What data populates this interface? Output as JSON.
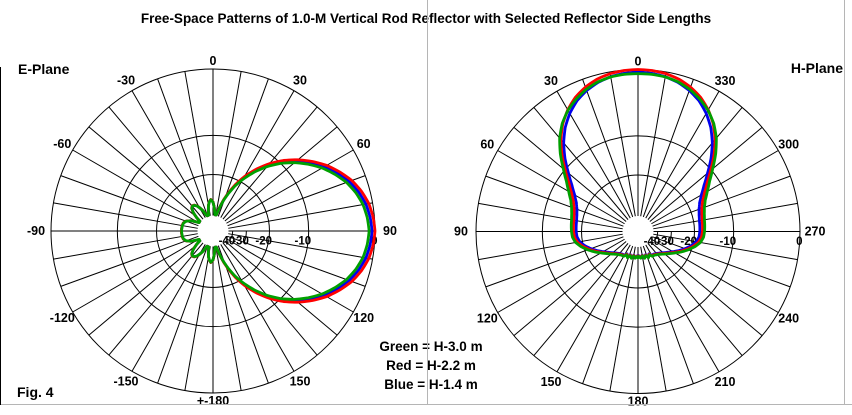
{
  "title": "Free-Space Patterns of 1.0-M Vertical Rod Reflector with Selected Reflector Side Lengths",
  "figure_label": "Fig. 4",
  "legend": {
    "lines": [
      "Green = H-3.0 m",
      "Red = H-2.2 m",
      "Blue = H-1.4 m"
    ]
  },
  "colors": {
    "green": "#00A000",
    "red": "#FF0000",
    "blue": "#0000EE",
    "grid": "#000000",
    "divider": "#B5B5B5",
    "edge": "#000000"
  },
  "chart_data": {
    "type": "polar-pattern",
    "scale": {
      "kind": "ARRL-log (radius x0.9 per -2 dB)",
      "ring_db": [
        0,
        -10,
        -20,
        -30,
        -40
      ],
      "full_rings_db": [
        0,
        -10,
        -20
      ],
      "tick_arc_db": [
        -30,
        -40
      ],
      "floor_db": -45,
      "spoke_step_deg": 10
    },
    "plots": [
      {
        "label": "E-Plane",
        "center": [
          213,
          231
        ],
        "radius": 162,
        "hole_radius": 15.5,
        "main_lobe_axis_deg": 90,
        "angle_labels": [
          {
            "a": 0,
            "t": "0"
          },
          {
            "a": 30,
            "t": "30"
          },
          {
            "a": 60,
            "t": "60"
          },
          {
            "a": 90,
            "t": "90"
          },
          {
            "a": 120,
            "t": "120"
          },
          {
            "a": 150,
            "t": "150"
          },
          {
            "a": 180,
            "t": "+-180"
          },
          {
            "a": 210,
            "t": "-150"
          },
          {
            "a": 240,
            "t": "-120"
          },
          {
            "a": 270,
            "t": "-90"
          },
          {
            "a": 300,
            "t": "-60"
          },
          {
            "a": 330,
            "t": "-30"
          }
        ],
        "radial_labels": [
          {
            "db": -40,
            "t": "-40"
          },
          {
            "db": -30,
            "t": "-30"
          },
          {
            "db": -20,
            "t": "-20"
          },
          {
            "db": -10,
            "t": "-10"
          },
          {
            "db": 0,
            "t": "0"
          }
        ],
        "base_points_deg_db": [
          [
            0,
            0
          ],
          [
            5,
            -0.15
          ],
          [
            10,
            -0.45
          ],
          [
            15,
            -1.0
          ],
          [
            20,
            -1.75
          ],
          [
            25,
            -2.8
          ],
          [
            30,
            -4.0
          ],
          [
            35,
            -5.5
          ],
          [
            40,
            -7.2
          ],
          [
            45,
            -9.2
          ],
          [
            50,
            -11.6
          ],
          [
            55,
            -14.5
          ],
          [
            60,
            -18.0
          ],
          [
            64,
            -21.5
          ],
          [
            68,
            -26.0
          ],
          [
            71,
            -30.0
          ],
          [
            74,
            -35.0
          ],
          [
            77,
            -41.0
          ],
          [
            79,
            -45.0
          ],
          [
            82,
            -45.0
          ],
          [
            84,
            -42.0
          ],
          [
            87,
            -36.5
          ],
          [
            90,
            -32.6
          ],
          [
            94,
            -31.0
          ],
          [
            97,
            -32.2
          ],
          [
            100,
            -34.6
          ],
          [
            103,
            -39.0
          ],
          [
            106,
            -45.0
          ],
          [
            110,
            -45.0
          ],
          [
            113,
            -42.0
          ],
          [
            117,
            -36.5
          ],
          [
            122,
            -32.4
          ],
          [
            126,
            -30.8
          ],
          [
            129.5,
            -30.4
          ],
          [
            133,
            -31.2
          ],
          [
            137,
            -34.0
          ],
          [
            141,
            -39.0
          ],
          [
            144,
            -45.0
          ],
          [
            148,
            -45.0
          ],
          [
            151,
            -41.0
          ],
          [
            155,
            -36.0
          ],
          [
            160,
            -32.8
          ],
          [
            165,
            -31.5
          ],
          [
            170,
            -31.2
          ],
          [
            174,
            -31.1
          ],
          [
            178,
            -31.0
          ],
          [
            180,
            -31.05
          ]
        ],
        "series": [
          {
            "name": "H-1.4 m",
            "color_key": "blue",
            "delta_db": [
              [
                0,
                -0.35
              ],
              [
                45,
                -0.4
              ],
              [
                60,
                -0.55
              ],
              [
                72,
                -0.3
              ],
              [
                80,
                -0.1
              ],
              [
                90,
                -0.1
              ],
              [
                180,
                -0.08
              ]
            ]
          },
          {
            "name": "H-2.2 m",
            "color_key": "red",
            "delta_db": [
              [
                0,
                0
              ],
              [
                180,
                0
              ]
            ]
          },
          {
            "name": "H-3.0 m",
            "color_key": "green",
            "delta_db": [
              [
                0,
                -0.7
              ],
              [
                45,
                -0.8
              ],
              [
                60,
                -1.0
              ],
              [
                72,
                -0.5
              ],
              [
                80,
                -0.2
              ],
              [
                90,
                -0.18
              ],
              [
                180,
                -0.15
              ]
            ]
          }
        ]
      },
      {
        "label": "H-Plane",
        "center": [
          638,
          231.5
        ],
        "radius": 162,
        "hole_radius": 15.5,
        "main_lobe_axis_deg": 0,
        "angle_labels": [
          {
            "a": 0,
            "t": "0"
          },
          {
            "a": 30,
            "t": "330"
          },
          {
            "a": 60,
            "t": "300"
          },
          {
            "a": 90,
            "t": "270"
          },
          {
            "a": 120,
            "t": "240"
          },
          {
            "a": 150,
            "t": "210"
          },
          {
            "a": 180,
            "t": "180"
          },
          {
            "a": 210,
            "t": "150"
          },
          {
            "a": 240,
            "t": "120"
          },
          {
            "a": 270,
            "t": "90"
          },
          {
            "a": 300,
            "t": "60"
          },
          {
            "a": 330,
            "t": "30"
          }
        ],
        "radial_labels": [
          {
            "db": -40,
            "t": "-40"
          },
          {
            "db": -30,
            "t": "-30"
          },
          {
            "db": -20,
            "t": "-20"
          },
          {
            "db": -10,
            "t": "-10"
          },
          {
            "db": 0,
            "t": "0"
          }
        ],
        "base_points_deg_db": [
          [
            0,
            0
          ],
          [
            5,
            -0.05
          ],
          [
            10,
            -0.2
          ],
          [
            15,
            -0.5
          ],
          [
            20,
            -1.0
          ],
          [
            25,
            -1.7
          ],
          [
            30,
            -2.7
          ],
          [
            35,
            -4.0
          ],
          [
            40,
            -5.7
          ],
          [
            45,
            -7.8
          ],
          [
            50,
            -10.2
          ],
          [
            55,
            -12.4
          ],
          [
            60,
            -14.2
          ],
          [
            65,
            -15.6
          ],
          [
            70,
            -16.5
          ],
          [
            75,
            -17.0
          ],
          [
            80,
            -17.3
          ],
          [
            85,
            -17.4
          ],
          [
            90,
            -17.5
          ],
          [
            95,
            -17.7
          ],
          [
            100,
            -18.4
          ],
          [
            105,
            -19.8
          ],
          [
            110,
            -21.6
          ],
          [
            115,
            -23.6
          ],
          [
            120,
            -25.8
          ],
          [
            125,
            -27.8
          ],
          [
            130,
            -29.6
          ],
          [
            135,
            -31.2
          ],
          [
            140,
            -32.4
          ],
          [
            145,
            -33.2
          ],
          [
            150,
            -33.4
          ],
          [
            154,
            -35.2
          ],
          [
            158,
            -33.6
          ],
          [
            162,
            -35.6
          ],
          [
            166,
            -34.0
          ],
          [
            170,
            -36.0
          ],
          [
            174,
            -34.5
          ],
          [
            178,
            -35.8
          ],
          [
            180,
            -34.8
          ]
        ],
        "series": [
          {
            "name": "H-1.4 m",
            "color_key": "blue",
            "delta_db": [
              [
                0,
                -0.3
              ],
              [
                25,
                -0.5
              ],
              [
                40,
                -0.7
              ],
              [
                60,
                -0.9
              ],
              [
                90,
                -0.8
              ],
              [
                130,
                -0.6
              ],
              [
                160,
                -0.3
              ],
              [
                180,
                -0.2
              ]
            ]
          },
          {
            "name": "H-2.2 m",
            "color_key": "red",
            "delta_db": [
              [
                0,
                0
              ],
              [
                180,
                0
              ]
            ]
          },
          {
            "name": "H-3.0 m",
            "color_key": "green",
            "delta_db": [
              [
                0,
                -0.5
              ],
              [
                25,
                -0.25
              ],
              [
                40,
                0.3
              ],
              [
                60,
                0.8
              ],
              [
                90,
                0.6
              ],
              [
                130,
                0.5
              ],
              [
                160,
                0.4
              ],
              [
                180,
                0.35
              ]
            ]
          }
        ]
      }
    ]
  }
}
